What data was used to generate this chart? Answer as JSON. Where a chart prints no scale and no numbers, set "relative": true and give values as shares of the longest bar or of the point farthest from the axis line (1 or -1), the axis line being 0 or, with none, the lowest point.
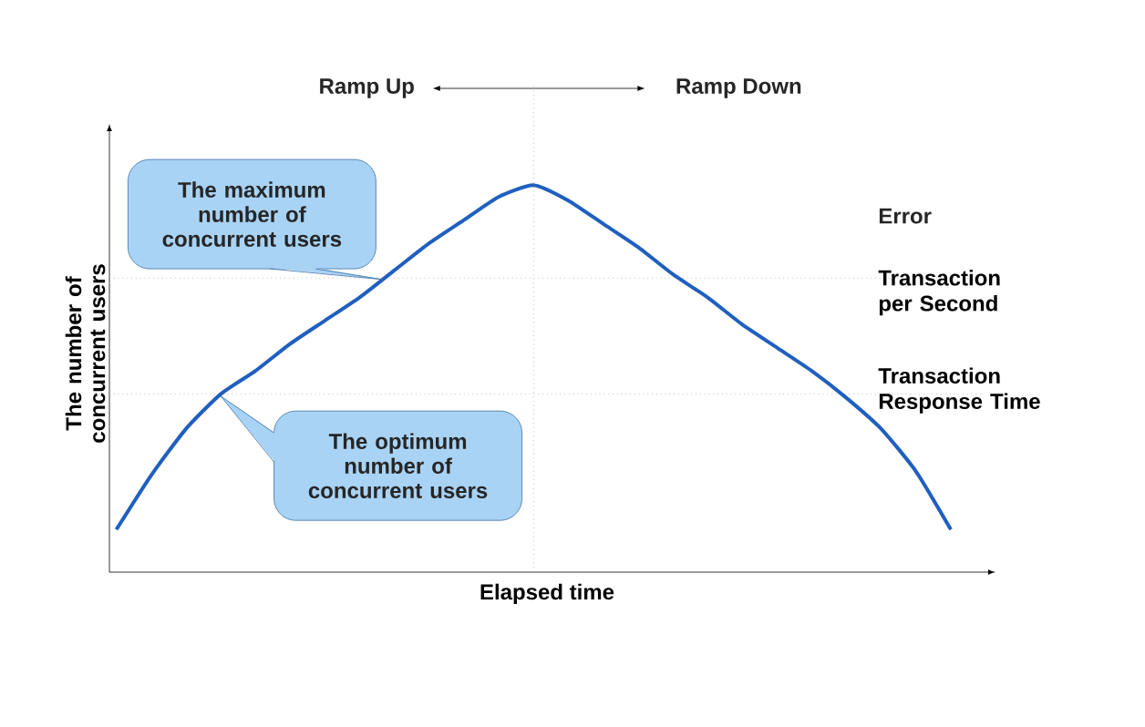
{
  "chart_data": {
    "type": "line",
    "relative": true,
    "xlabel": "Elapsed time",
    "ylabel": "The number of concurrent users",
    "categories": [
      null,
      null,
      null,
      null,
      null,
      null,
      null,
      null,
      null,
      null,
      null,
      null,
      null,
      null,
      null,
      null,
      null,
      null,
      null,
      null,
      null,
      null,
      null,
      null,
      null
    ],
    "values": [
      0.11,
      0.25,
      0.37,
      0.46,
      0.52,
      0.59,
      0.65,
      0.71,
      0.78,
      0.85,
      0.91,
      0.97,
      1,
      0.96,
      0.9,
      0.84,
      0.77,
      0.71,
      0.64,
      0.58,
      0.52,
      0.45,
      0.37,
      0.26,
      0.11
    ],
    "color": "#1f5fbf",
    "marker": "none",
    "tick_labels": false,
    "ref_lines": [
      {
        "axis": "y",
        "value": 0.76,
        "label": "Transaction per Second",
        "color": "#a0a0a0",
        "line_style": "dotted"
      },
      {
        "axis": "y",
        "value": 0.46,
        "label": "Transaction Response Time",
        "color": "#a0a0a0",
        "line_style": "dotted"
      }
    ],
    "annotations": [
      "Ramp Up",
      "Ramp Down",
      "The maximum number of concurrent users",
      "The optimum number of concurrent users",
      "Error"
    ]
  }
}
